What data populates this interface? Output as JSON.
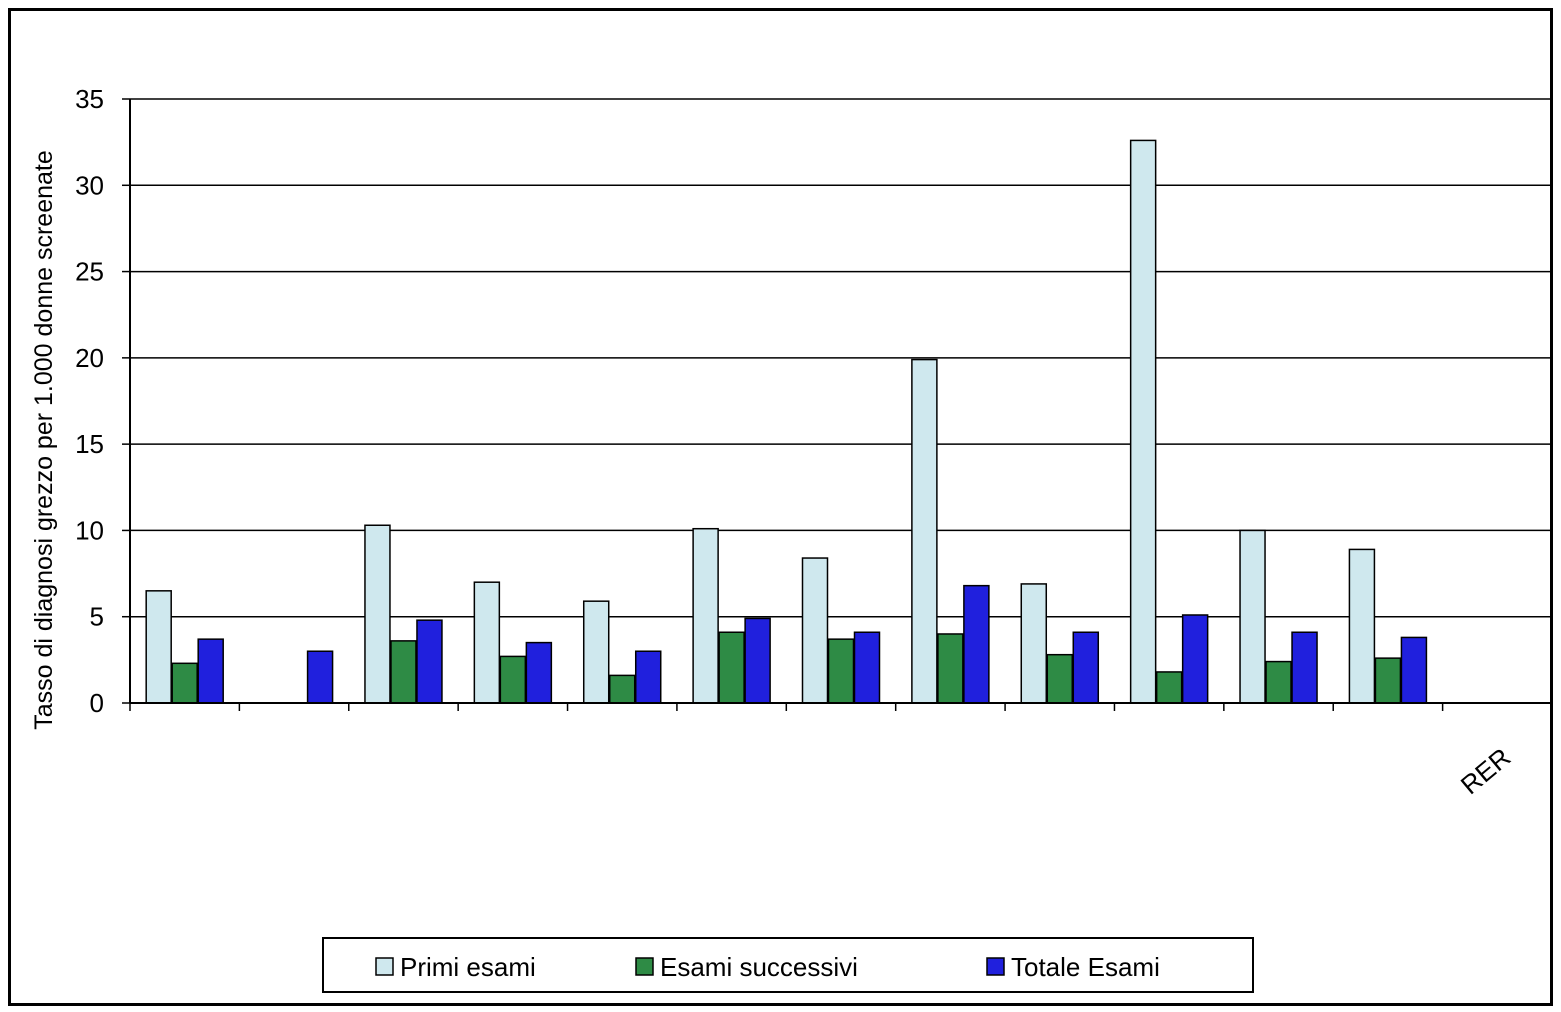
{
  "chart_data": {
    "type": "bar",
    "title": "",
    "xlabel": "",
    "ylabel": "Tasso di diagnosi grezzo per 1.000 donne screenate",
    "ylim": [
      0,
      35
    ],
    "yticks": [
      "0",
      "5",
      "10",
      "15",
      "20",
      "25",
      "30",
      "35"
    ],
    "categories": [
      "",
      "",
      "",
      "",
      "",
      "",
      "",
      "",
      "",
      "",
      "",
      "",
      "RER"
    ],
    "series": [
      {
        "name": "Primi esami",
        "color": "#cfe8ee",
        "values": [
          6.5,
          null,
          10.3,
          7.0,
          5.9,
          10.1,
          8.4,
          19.9,
          6.9,
          32.6,
          10.0,
          8.9,
          null
        ]
      },
      {
        "name": "Esami successivi",
        "color": "#2e8b45",
        "values": [
          2.3,
          null,
          3.6,
          2.7,
          1.6,
          4.1,
          3.7,
          4.0,
          2.8,
          1.8,
          2.4,
          2.6,
          null
        ]
      },
      {
        "name": "Totale Esami",
        "color": "#2020dd",
        "values": [
          3.7,
          3.0,
          4.8,
          3.5,
          3.0,
          4.9,
          4.1,
          6.8,
          4.1,
          5.1,
          4.1,
          3.8,
          null
        ]
      }
    ],
    "grid": true,
    "legend": "bottom"
  }
}
